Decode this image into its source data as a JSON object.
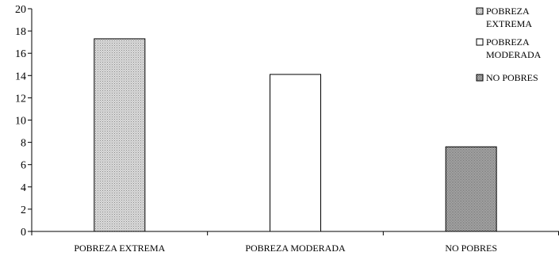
{
  "chart_data": {
    "type": "bar",
    "categories": [
      "POBREZA EXTREMA",
      "POBREZA MODERADA",
      "NO POBRES"
    ],
    "values": [
      17.3,
      14.1,
      7.6
    ],
    "ylim": [
      0,
      20
    ],
    "yticks": [
      0,
      2,
      4,
      6,
      8,
      10,
      12,
      14,
      16,
      18,
      20
    ],
    "grid": false,
    "legend_position": "top-right",
    "legend": [
      {
        "lines": [
          "POBREZA",
          "EXTREMA"
        ],
        "pattern": "light-stipple"
      },
      {
        "lines": [
          "POBREZA",
          "MODERADA"
        ],
        "pattern": "white"
      },
      {
        "lines": [
          "NO POBRES"
        ],
        "pattern": "dark-stipple"
      }
    ],
    "bar_patterns": [
      "light-stipple",
      "white",
      "dark-stipple"
    ]
  }
}
